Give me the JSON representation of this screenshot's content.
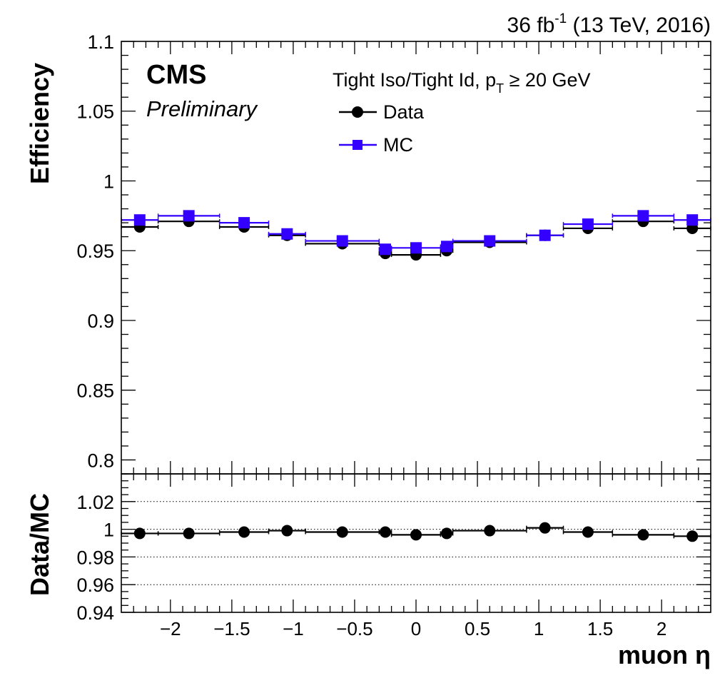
{
  "lumi": {
    "main": "36 fb",
    "sup": "-1",
    "rest": " (13 TeV, 2016)"
  },
  "cms": {
    "label": "CMS",
    "sublabel": "Preliminary"
  },
  "legend": {
    "title_main": "Tight Iso/Tight Id, p",
    "title_sub": "T",
    "title_rest": " ≥ 20 GeV",
    "entries": [
      "Data",
      "MC"
    ]
  },
  "colors": {
    "data": "#000000",
    "mc": "#3300ff"
  },
  "chart_data": [
    {
      "type": "scatter",
      "ylabel": "Efficiency",
      "xlim": [
        -2.4,
        2.4
      ],
      "ylim": [
        0.79,
        1.1
      ],
      "yticks": [
        "0.8",
        "0.85",
        "0.9",
        "0.95",
        "1",
        "1.05",
        "1.1"
      ],
      "bin_edges": [
        -2.4,
        -2.1,
        -1.6,
        -1.2,
        -0.9,
        -0.3,
        -0.2,
        0.2,
        0.3,
        0.9,
        1.2,
        1.6,
        2.1,
        2.4
      ],
      "x": [
        -2.25,
        -1.85,
        -1.4,
        -1.05,
        -0.6,
        -0.25,
        0.0,
        0.25,
        0.6,
        1.05,
        1.4,
        1.85,
        2.25
      ],
      "series": [
        {
          "name": "Data",
          "values": [
            0.967,
            0.971,
            0.967,
            0.961,
            0.955,
            0.948,
            0.947,
            0.95,
            0.956,
            0.961,
            0.966,
            0.971,
            0.966
          ]
        },
        {
          "name": "MC",
          "values": [
            0.972,
            0.975,
            0.97,
            0.962,
            0.957,
            0.951,
            0.952,
            0.953,
            0.957,
            0.961,
            0.969,
            0.975,
            0.972
          ]
        }
      ]
    },
    {
      "type": "scatter",
      "ylabel": "Data/MC",
      "xlabel": "muon η",
      "xlim": [
        -2.4,
        2.4
      ],
      "ylim": [
        0.94,
        1.04
      ],
      "yticks": [
        "0.94",
        "0.96",
        "0.98",
        "1",
        "1.02"
      ],
      "xticks": [
        "−2",
        "−1.5",
        "−1",
        "−0.5",
        "0",
        "0.5",
        "1",
        "1.5",
        "2"
      ],
      "gridlines": [
        0.96,
        0.98,
        1.0,
        1.02
      ],
      "bin_edges": [
        -2.4,
        -2.1,
        -1.6,
        -1.2,
        -0.9,
        -0.3,
        -0.2,
        0.2,
        0.3,
        0.9,
        1.2,
        1.6,
        2.1,
        2.4
      ],
      "x": [
        -2.25,
        -1.85,
        -1.4,
        -1.05,
        -0.6,
        -0.25,
        0.0,
        0.25,
        0.6,
        1.05,
        1.4,
        1.85,
        2.25
      ],
      "series": [
        {
          "name": "Data/MC",
          "values": [
            0.997,
            0.997,
            0.998,
            0.999,
            0.998,
            0.998,
            0.996,
            0.997,
            0.999,
            1.001,
            0.998,
            0.996,
            0.995
          ]
        }
      ]
    }
  ]
}
